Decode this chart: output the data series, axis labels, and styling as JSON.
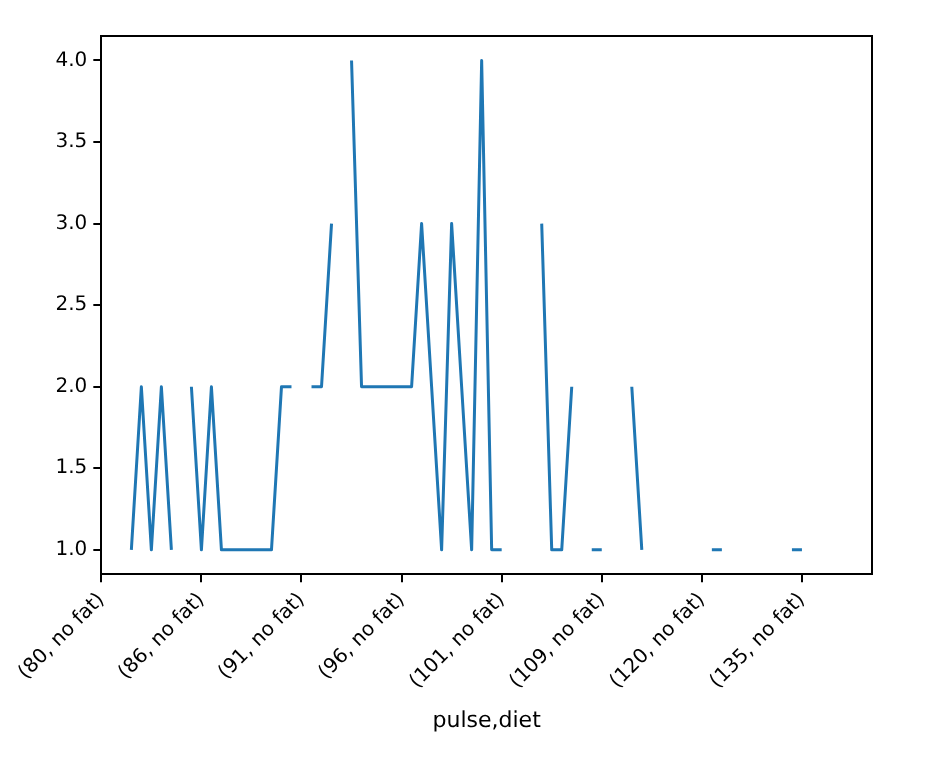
{
  "chart_data": {
    "type": "line",
    "xlabel": "pulse,diet",
    "categories": [
      "(80, no fat)",
      null,
      null,
      null,
      null,
      null,
      null,
      null,
      null,
      null,
      "(86, no fat)",
      null,
      null,
      null,
      null,
      null,
      null,
      null,
      null,
      null,
      "(91, no fat)",
      null,
      null,
      null,
      null,
      null,
      null,
      null,
      null,
      null,
      "(96, no fat)",
      null,
      null,
      null,
      null,
      null,
      null,
      null,
      null,
      null,
      "(101, no fat)",
      null,
      null,
      null,
      null,
      null,
      null,
      null,
      null,
      null,
      "(109, no fat)",
      null,
      null,
      null,
      null,
      null,
      null,
      null,
      null,
      null,
      "(120, no fat)",
      null,
      null,
      null,
      null,
      null,
      null,
      null,
      null,
      null,
      "(135, no fat)",
      null,
      null,
      null,
      null,
      null,
      null,
      null
    ],
    "series": [
      {
        "color": "#1f77b4",
        "values": [
          null,
          null,
          null,
          1,
          2,
          1,
          2,
          1,
          null,
          2,
          1,
          2,
          1,
          1,
          1,
          1,
          1,
          1,
          2,
          2,
          null,
          2,
          2,
          3,
          null,
          4,
          2,
          2,
          2,
          2,
          2,
          2,
          3,
          2,
          1,
          3,
          2,
          1,
          4,
          1,
          1,
          null,
          null,
          null,
          3,
          1,
          1,
          2,
          null,
          1,
          1,
          null,
          null,
          2,
          1,
          null,
          null,
          null,
          null,
          null,
          null,
          1,
          1,
          null,
          null,
          null,
          null,
          null,
          null,
          1,
          1,
          null,
          null,
          null,
          null,
          null,
          null,
          null
        ]
      }
    ],
    "ylim": [
      0.85,
      4.15
    ],
    "yticks": [
      {
        "value": 1,
        "label": "1.0"
      },
      {
        "value": 1.5,
        "label": "1.5"
      },
      {
        "value": 2,
        "label": "2.0"
      },
      {
        "value": 2.5,
        "label": "2.5"
      },
      {
        "value": 3,
        "label": "3.0"
      },
      {
        "value": 3.5,
        "label": "3.5"
      },
      {
        "value": 4,
        "label": "4.0"
      }
    ],
    "grid": false,
    "legend": false,
    "marker": "none",
    "line_style": "solid"
  }
}
